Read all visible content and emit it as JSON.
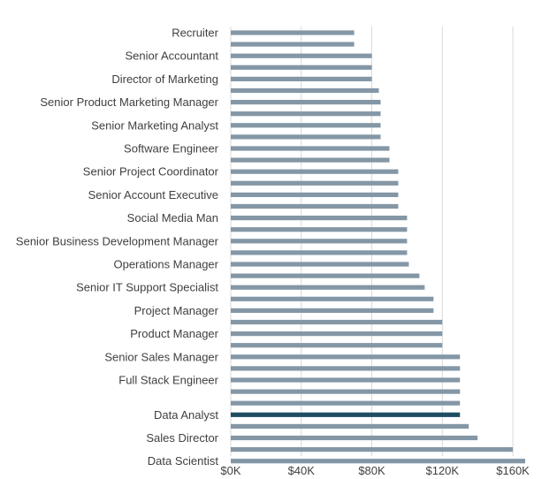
{
  "chart_data": {
    "type": "bar",
    "orientation": "horizontal",
    "title": "",
    "xlabel": "",
    "ylabel": "",
    "xlim": [
      0,
      170000
    ],
    "x_ticks": [
      {
        "value": 0,
        "label": "$0K"
      },
      {
        "value": 40000,
        "label": "$40K"
      },
      {
        "value": 80000,
        "label": "$80K"
      },
      {
        "value": 120000,
        "label": "$120K"
      },
      {
        "value": 160000,
        "label": "$160K"
      }
    ],
    "grid": "vertical",
    "legend": "none",
    "colors": {
      "bar": "#8497a6",
      "highlight": "#1f4e63",
      "grid": "#d9d9d9",
      "text": "#404040"
    },
    "highlight_index": 33,
    "categories": [
      "Recruiter",
      "",
      "Senior Accountant",
      "",
      "Director of Marketing",
      "",
      "Senior Product Marketing Manager",
      "",
      "Senior Marketing Analyst",
      "",
      "Software Engineer",
      "",
      "Senior Project Coordinator",
      "",
      "Senior Account Executive",
      "",
      "Social Media Man",
      "",
      "Senior Business Development Manager",
      "",
      "Operations Manager",
      "",
      "Senior IT Support Specialist",
      "",
      "Project Manager",
      "",
      "Product Manager",
      "",
      "Senior Sales Manager",
      "",
      "Full Stack Engineer",
      "",
      "",
      "Data Analyst",
      "",
      "Sales Director",
      "",
      "Data Scientist"
    ],
    "values": [
      70000,
      70000,
      80000,
      80000,
      80000,
      84000,
      85000,
      85000,
      85000,
      85000,
      90000,
      90000,
      95000,
      95000,
      95000,
      95000,
      100000,
      100000,
      100000,
      100000,
      101000,
      107000,
      110000,
      115000,
      115000,
      120000,
      120000,
      120000,
      130000,
      130000,
      130000,
      130000,
      130000,
      130000,
      135000,
      140000,
      160000,
      167000
    ]
  }
}
